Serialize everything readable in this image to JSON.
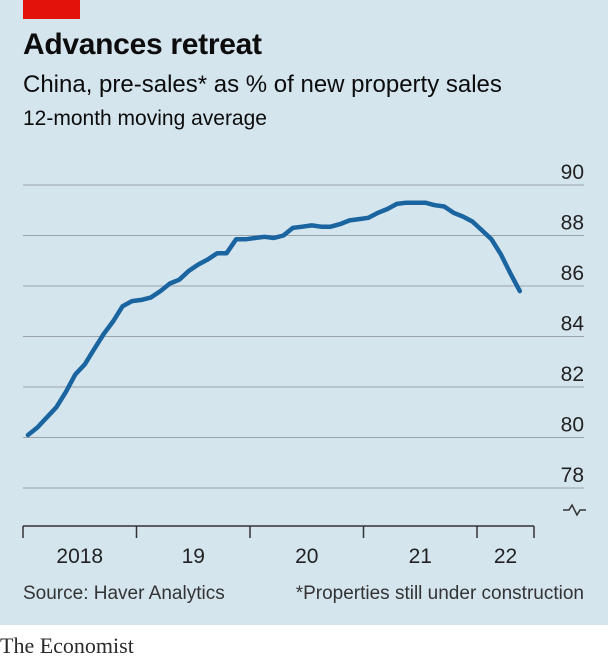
{
  "header": {
    "title": "Advances retreat",
    "subtitle": "China, pre-sales* as % of new property sales",
    "note": "12-month moving average"
  },
  "footer": {
    "source": "Source: Haver Analytics",
    "footnote": "*Properties still under construction",
    "brand": "The Economist"
  },
  "colors": {
    "background": "#d5e5ee",
    "line": "#1a64a0",
    "accent_red": "#e3120b",
    "grid": "#9aa3a8"
  },
  "chart_data": {
    "type": "line",
    "title": "Advances retreat",
    "subtitle": "China, pre-sales* as % of new property sales",
    "note": "12-month moving average",
    "xlabel": "",
    "ylabel": "",
    "ylim": [
      78,
      90
    ],
    "yticks": [
      "90",
      "88",
      "86",
      "84",
      "82",
      "80",
      "78"
    ],
    "xticks": [
      "2018",
      "19",
      "20",
      "21",
      "22"
    ],
    "axis_break": true,
    "grid": true,
    "yaxis_side": "right",
    "series": [
      {
        "x": [
          "2018-01",
          "2018-02",
          "2018-03",
          "2018-04",
          "2018-05",
          "2018-06",
          "2018-07",
          "2018-08",
          "2018-09",
          "2018-10",
          "2018-11",
          "2018-12",
          "2019-01",
          "2019-02",
          "2019-03",
          "2019-04",
          "2019-05",
          "2019-06",
          "2019-07",
          "2019-08",
          "2019-09",
          "2019-10",
          "2019-11",
          "2019-12",
          "2020-01",
          "2020-02",
          "2020-03",
          "2020-04",
          "2020-05",
          "2020-06",
          "2020-07",
          "2020-08",
          "2020-09",
          "2020-10",
          "2020-11",
          "2020-12",
          "2021-01",
          "2021-02",
          "2021-03",
          "2021-04",
          "2021-05",
          "2021-06",
          "2021-07",
          "2021-08",
          "2021-09",
          "2021-10",
          "2021-11",
          "2021-12",
          "2022-01",
          "2022-02",
          "2022-03",
          "2022-04",
          "2022-05"
        ],
        "values": [
          80.1,
          80.4,
          80.8,
          81.2,
          81.8,
          82.5,
          82.9,
          83.5,
          84.1,
          84.6,
          85.2,
          85.4,
          85.45,
          85.55,
          85.8,
          86.1,
          86.25,
          86.6,
          86.85,
          87.05,
          87.3,
          87.3,
          87.85,
          87.85,
          87.9,
          87.95,
          87.9,
          88.0,
          88.3,
          88.35,
          88.4,
          88.35,
          88.35,
          88.45,
          88.6,
          88.65,
          88.7,
          88.9,
          89.05,
          89.25,
          89.3,
          89.3,
          89.3,
          89.2,
          89.15,
          88.9,
          88.75,
          88.55,
          88.2,
          87.85,
          87.25,
          86.5,
          85.8
        ]
      }
    ]
  }
}
